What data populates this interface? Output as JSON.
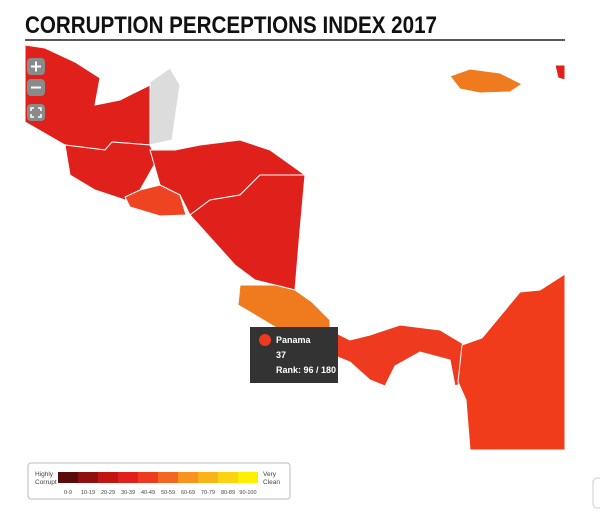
{
  "header": {
    "title": "CORRUPTION PERCEPTIONS INDEX 2017"
  },
  "tooltip": {
    "country": "Panama",
    "score": 37,
    "rank": "Rank: 96 / 180"
  },
  "legend": {
    "low_label": [
      "Highly",
      "Corrupt"
    ],
    "high_label": [
      "Very",
      "Clean"
    ],
    "bins": [
      {
        "label": "0-9",
        "color": "#5a0b0b"
      },
      {
        "label": "10-19",
        "color": "#8e100f"
      },
      {
        "label": "20-29",
        "color": "#c11610"
      },
      {
        "label": "30-39",
        "color": "#e0201b"
      },
      {
        "label": "40-49",
        "color": "#ee3a1e"
      },
      {
        "label": "50-59",
        "color": "#f26722"
      },
      {
        "label": "60-69",
        "color": "#f7931e"
      },
      {
        "label": "70-79",
        "color": "#fbb31a"
      },
      {
        "label": "80-89",
        "color": "#fdd30f"
      },
      {
        "label": "90-100",
        "color": "#fff000"
      }
    ]
  }
}
